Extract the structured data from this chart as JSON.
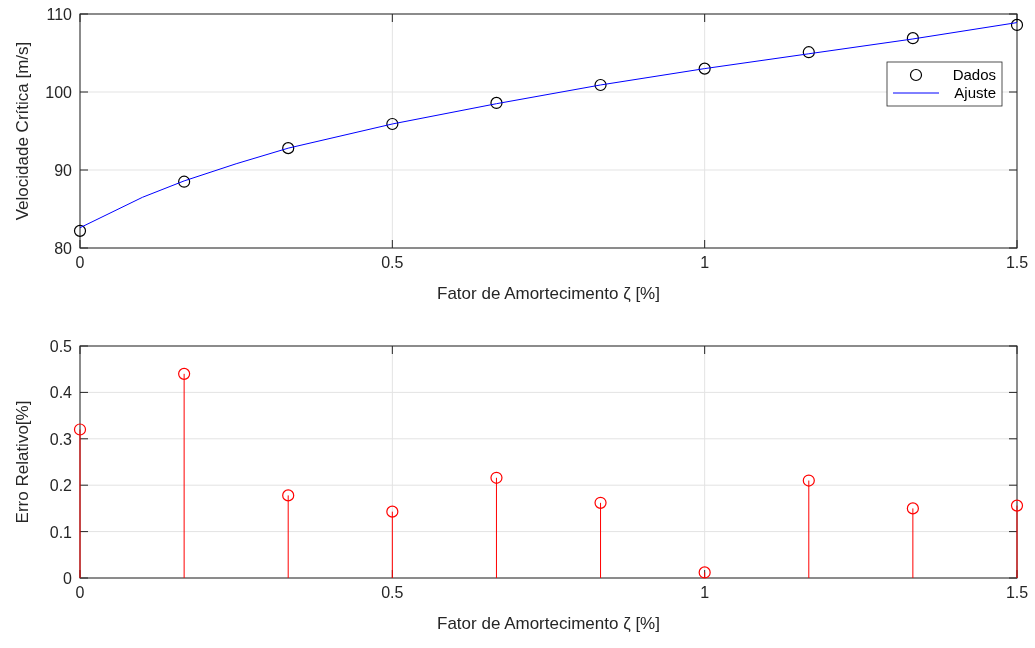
{
  "chart_data": [
    {
      "type": "scatter",
      "xlabel": "Fator de Amortecimento  ζ [%]",
      "ylabel": "Velocidade Crítica [m/s]",
      "xlim": [
        0,
        1.5
      ],
      "xticks": [
        0,
        0.5,
        1,
        1.5
      ],
      "ylim": [
        80,
        110
      ],
      "yticks": [
        80,
        90,
        100,
        110
      ],
      "grid": true,
      "legend": "right",
      "series": [
        {
          "name": "Dados",
          "marker": "circle",
          "color": "#000000",
          "x": [
            0,
            0.1667,
            0.3333,
            0.5,
            0.6667,
            0.8333,
            1,
            1.1667,
            1.3333,
            1.5
          ],
          "values": [
            82.2,
            88.5,
            92.8,
            95.9,
            98.6,
            100.9,
            103.0,
            105.1,
            106.9,
            108.6
          ]
        },
        {
          "name": "Ajuste",
          "type": "line",
          "color": "#0000ff",
          "x": [
            0,
            0.1,
            0.1667,
            0.25,
            0.3333,
            0.5,
            0.6667,
            0.8333,
            1,
            1.1667,
            1.3333,
            1.5
          ],
          "values": [
            82.6,
            86.5,
            88.6,
            90.8,
            92.8,
            95.9,
            98.5,
            100.9,
            103.0,
            104.9,
            106.8,
            108.9
          ]
        }
      ]
    },
    {
      "type": "lollipop",
      "xlabel": "Fator de Amortecimento  ζ [%]",
      "ylabel": "Erro Relativo[%]",
      "xlim": [
        0,
        1.5
      ],
      "xticks": [
        0,
        0.5,
        1,
        1.5
      ],
      "ylim": [
        0,
        0.5
      ],
      "yticks": [
        0,
        0.1,
        0.2,
        0.3,
        0.4,
        0.5
      ],
      "grid": true,
      "marker": "circle",
      "series": [
        {
          "color": "#ff0000",
          "x": [
            0,
            0.1667,
            0.3333,
            0.5,
            0.6667,
            0.8333,
            1,
            1.1667,
            1.3333,
            1.5
          ],
          "values": [
            0.32,
            0.44,
            0.178,
            0.143,
            0.216,
            0.162,
            0.012,
            0.21,
            0.15,
            0.156
          ]
        }
      ]
    }
  ]
}
